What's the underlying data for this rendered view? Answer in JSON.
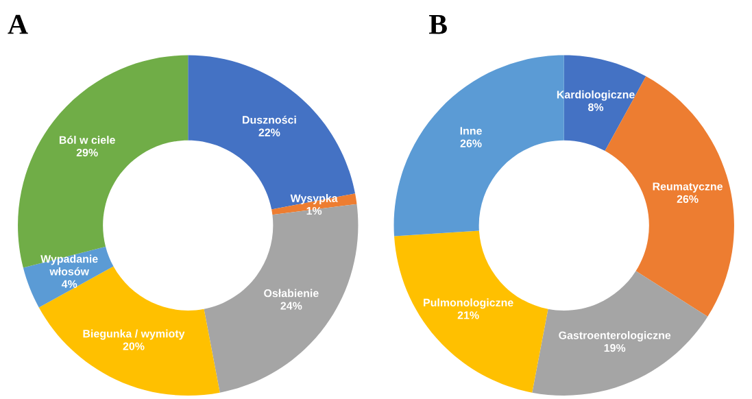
{
  "chart_data": [
    {
      "type": "donut",
      "title": "A",
      "categories": [
        "Duszności",
        "Wysypka",
        "Osłabienie",
        "Biegunka / wymioty",
        "Wypadanie\nwłosów",
        "Ból w ciele"
      ],
      "values": [
        22,
        1,
        24,
        20,
        4,
        29
      ],
      "value_labels": [
        "22%",
        "1%",
        "24%",
        "20%",
        "4%",
        "29%"
      ],
      "colors": [
        "#4472c4",
        "#ed7d31",
        "#a5a5a5",
        "#ffc000",
        "#5b9bd5",
        "#70ad47"
      ]
    },
    {
      "type": "donut",
      "title": "B",
      "categories": [
        "Kardiologiczne",
        "Reumatyczne",
        "Gastroenterologiczne",
        "Pulmonologiczne",
        "Inne"
      ],
      "values": [
        8,
        26,
        19,
        21,
        26
      ],
      "value_labels": [
        "8%",
        "26%",
        "19%",
        "21%",
        "26%"
      ],
      "colors": [
        "#4472c4",
        "#ed7d31",
        "#a5a5a5",
        "#ffc000",
        "#5b9bd5"
      ]
    }
  ]
}
